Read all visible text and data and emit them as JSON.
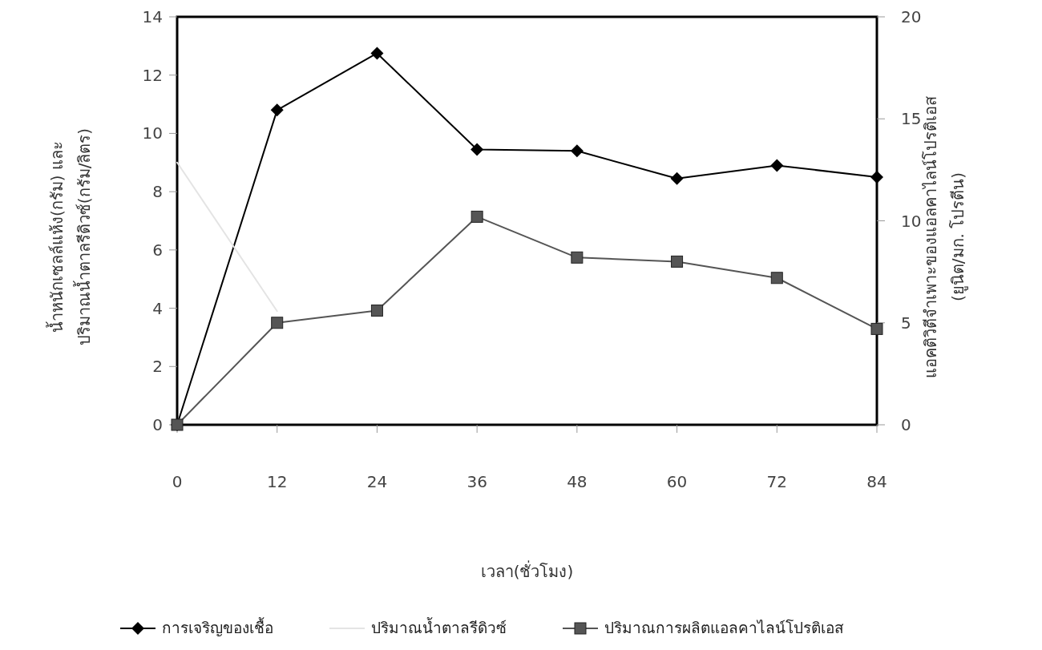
{
  "chart_data": {
    "type": "line",
    "x": [
      0,
      12,
      24,
      36,
      48,
      60,
      72,
      84
    ],
    "xlabel": "เวลา(ชั่วโมง)",
    "ylabel": "น้ำหนักเซลล์แห้ง(กรัม) และ\nปริมาณน้ำตาลรีดิวซ์(กรัม/ลิตร)",
    "y2label": "แอคติวิตีจำเพาะของแอลคาไลน์โปรติเอส\n(ยูนิต/มก. โปรตีน)",
    "xlim": [
      0,
      84
    ],
    "xticks": [
      0,
      12,
      24,
      36,
      48,
      60,
      72,
      84
    ],
    "ylim": [
      0,
      14
    ],
    "yticks": [
      0,
      2,
      4,
      6,
      8,
      10,
      12,
      14
    ],
    "y2lim": [
      0,
      20
    ],
    "y2ticks": [
      0,
      5,
      10,
      15,
      20
    ],
    "legend": "bottom",
    "grid": false,
    "line_style": "solid",
    "series": [
      {
        "name": "การเจริญของเชื้อ",
        "color": "#000000",
        "marker": "diamond",
        "values": [
          0,
          10.8,
          12.75,
          9.45,
          9.4,
          8.45,
          8.9,
          8.5
        ]
      },
      {
        "name": "ปริมาณน้ำตาลรีดิวซ์",
        "color": "#e4e4e4",
        "marker": "none",
        "values": [
          9.0,
          3.9,
          null,
          null,
          null,
          null,
          null,
          null
        ]
      },
      {
        "name": "ปริมาณการผลิตแอลคาไลน์โปรติเอส",
        "color": "#555555",
        "marker": "square",
        "axis": "y2",
        "values": [
          0,
          5.0,
          5.6,
          10.2,
          8.2,
          8.0,
          7.2,
          4.7
        ]
      }
    ]
  }
}
